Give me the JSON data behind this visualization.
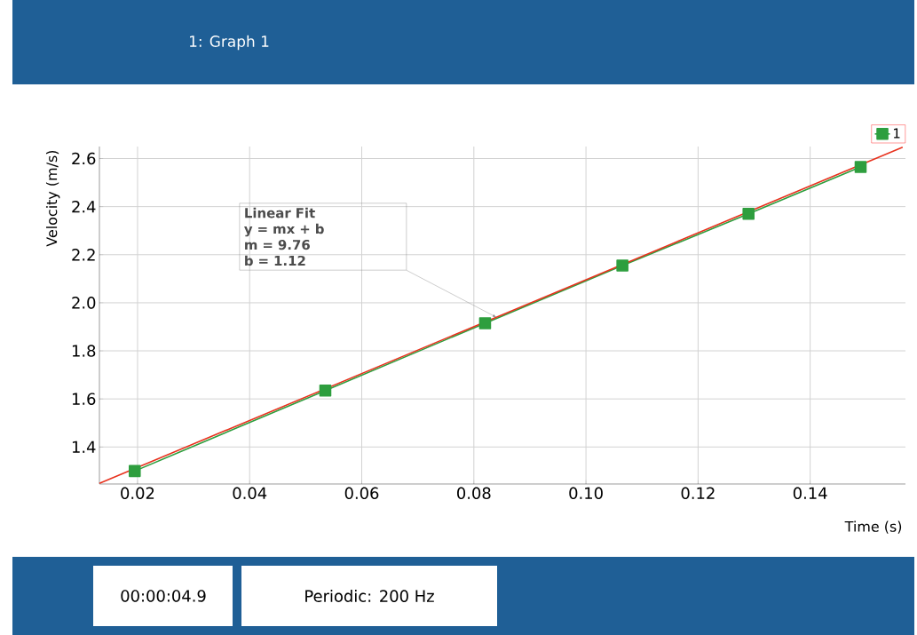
{
  "chart_data": {
    "type": "line",
    "xlabel": "Time (s)",
    "ylabel": "Velocity (m/s)",
    "xlim": [
      0.0132,
      0.157
    ],
    "ylim": [
      1.246,
      2.65
    ],
    "xticks": [
      0.02,
      0.04,
      0.06,
      0.08,
      {
        "value": 0.1,
        "label": "0.10"
      },
      0.12,
      0.14
    ],
    "yticks": [
      1.4,
      1.6,
      1.8,
      {
        "value": 2.0,
        "label": "2.0"
      },
      2.2,
      2.4,
      2.6
    ],
    "grid": true,
    "legend": "top right",
    "marker": "square",
    "series": [
      {
        "name": "1",
        "color": "#2e9e3e",
        "x": [
          0.0195,
          0.0535,
          0.082,
          0.1065,
          0.129,
          0.149
        ],
        "values": [
          1.3,
          1.635,
          1.915,
          2.155,
          2.37,
          2.565
        ]
      },
      {
        "type": "line",
        "color": "#e8321e",
        "marker": "none",
        "x": [
          0.0132,
          0.1565
        ],
        "values": [
          1.249,
          2.647
        ]
      }
    ],
    "annotations": [
      "Linear Fit",
      "y = mx + b",
      "m = 9.76",
      "b = 1.12",
      "1: Graph 1",
      "00:00:04.9",
      "Periodic: 200 Hz"
    ]
  }
}
